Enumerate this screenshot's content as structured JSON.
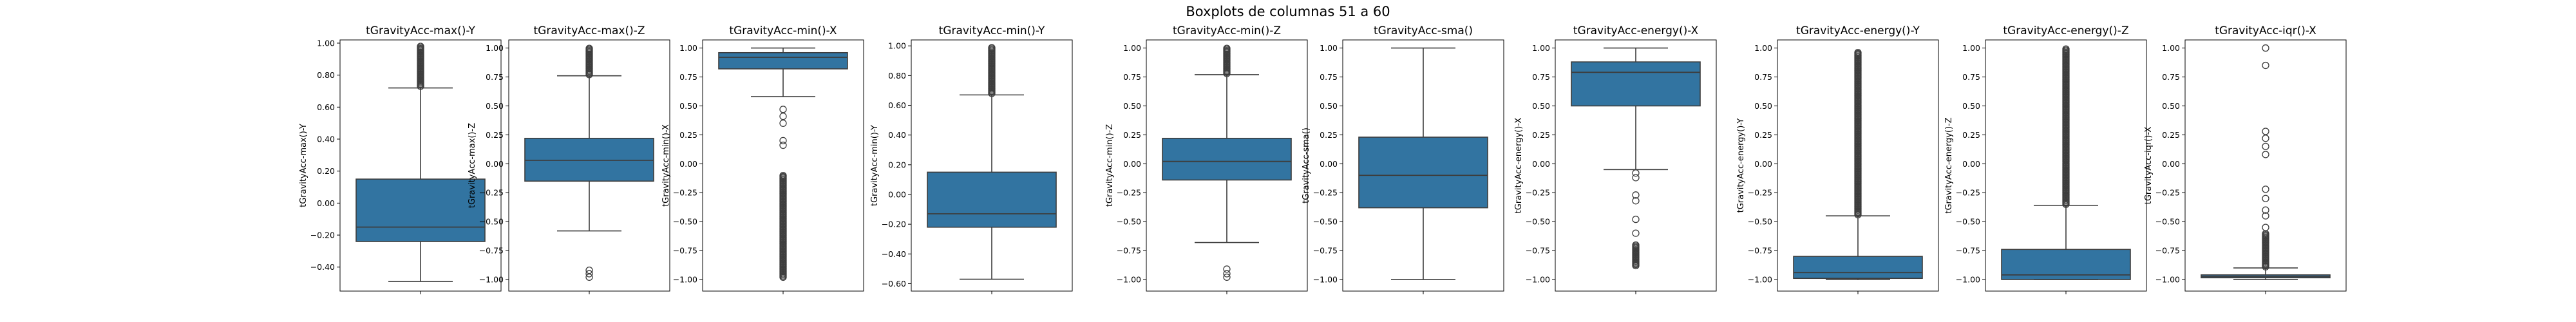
{
  "figure": {
    "suptitle": "Boxplots de columnas 51 a 60",
    "box_color": "#3274a1",
    "line_color": "#3d3d3d"
  },
  "chart_data": [
    {
      "type": "box",
      "title": "tGravityAcc-max()-Y",
      "ylabel": "tGravityAcc-max()-Y",
      "ylim": [
        -0.55,
        1.02
      ],
      "yticks": [
        -0.4,
        -0.2,
        0.0,
        0.2,
        0.4,
        0.6,
        0.8,
        1.0
      ],
      "q1": -0.24,
      "median": -0.15,
      "q3": 0.15,
      "whisker_low": -0.49,
      "whisker_high": 0.72,
      "outliers_range": [
        [
          0.73,
          0.98
        ]
      ],
      "outliers": []
    },
    {
      "type": "box",
      "title": "tGravityAcc-max()-Z",
      "ylabel": "tGravityAcc-max()-Z",
      "ylim": [
        -1.1,
        1.07
      ],
      "yticks": [
        -1.0,
        -0.75,
        -0.5,
        -0.25,
        0.0,
        0.25,
        0.5,
        0.75,
        1.0
      ],
      "q1": -0.15,
      "median": 0.03,
      "q3": 0.22,
      "whisker_low": -0.58,
      "whisker_high": 0.76,
      "outliers_range": [
        [
          0.77,
          1.0
        ]
      ],
      "outliers": [
        -0.92,
        -0.95,
        -0.98
      ]
    },
    {
      "type": "box",
      "title": "tGravityAcc-min()-X",
      "ylabel": "tGravityAcc-min()-X",
      "ylim": [
        -1.1,
        1.07
      ],
      "yticks": [
        -1.0,
        -0.75,
        -0.5,
        -0.25,
        0.0,
        0.25,
        0.5,
        0.75,
        1.0
      ],
      "q1": 0.82,
      "median": 0.92,
      "q3": 0.96,
      "whisker_low": 0.58,
      "whisker_high": 1.0,
      "outliers_range": [
        [
          -0.98,
          -0.1
        ]
      ],
      "outliers": [
        0.47,
        0.41,
        0.35,
        0.2,
        0.16
      ]
    },
    {
      "type": "box",
      "title": "tGravityAcc-min()-Y",
      "ylabel": "tGravityAcc-min()-Y",
      "ylim": [
        -0.65,
        1.04
      ],
      "yticks": [
        -0.6,
        -0.4,
        -0.2,
        0.0,
        0.2,
        0.4,
        0.6,
        0.8,
        1.0
      ],
      "q1": -0.22,
      "median": -0.13,
      "q3": 0.15,
      "whisker_low": -0.57,
      "whisker_high": 0.67,
      "outliers_range": [
        [
          0.68,
          0.99
        ]
      ],
      "outliers": []
    },
    {
      "type": "box",
      "title": "tGravityAcc-min()-Z",
      "ylabel": "tGravityAcc-min()-Z",
      "ylim": [
        -1.1,
        1.07
      ],
      "yticks": [
        -1.0,
        -0.75,
        -0.5,
        -0.25,
        0.0,
        0.25,
        0.5,
        0.75,
        1.0
      ],
      "q1": -0.14,
      "median": 0.02,
      "q3": 0.22,
      "whisker_low": -0.68,
      "whisker_high": 0.77,
      "outliers_range": [
        [
          0.78,
          1.0
        ]
      ],
      "outliers": [
        -0.91,
        -0.95,
        -0.98
      ]
    },
    {
      "type": "box",
      "title": "tGravityAcc-sma()",
      "ylabel": "tGravityAcc-sma()",
      "ylim": [
        -1.1,
        1.07
      ],
      "yticks": [
        -1.0,
        -0.75,
        -0.5,
        -0.25,
        0.0,
        0.25,
        0.5,
        0.75,
        1.0
      ],
      "q1": -0.38,
      "median": -0.1,
      "q3": 0.23,
      "whisker_low": -1.0,
      "whisker_high": 1.0,
      "outliers_range": [],
      "outliers": []
    },
    {
      "type": "box",
      "title": "tGravityAcc-energy()-X",
      "ylabel": "tGravityAcc-energy()-X",
      "ylim": [
        -1.1,
        1.07
      ],
      "yticks": [
        -1.0,
        -0.75,
        -0.5,
        -0.25,
        0.0,
        0.25,
        0.5,
        0.75,
        1.0
      ],
      "q1": 0.5,
      "median": 0.79,
      "q3": 0.88,
      "whisker_low": -0.05,
      "whisker_high": 1.0,
      "outliers_range": [
        [
          -0.88,
          -0.7
        ]
      ],
      "outliers": [
        -0.08,
        -0.12,
        -0.27,
        -0.32,
        -0.48,
        -0.6
      ]
    },
    {
      "type": "box",
      "title": "tGravityAcc-energy()-Y",
      "ylabel": "tGravityAcc-energy()-Y",
      "ylim": [
        -1.1,
        1.07
      ],
      "yticks": [
        -1.0,
        -0.75,
        -0.5,
        -0.25,
        0.0,
        0.25,
        0.5,
        0.75,
        1.0
      ],
      "q1": -0.99,
      "median": -0.94,
      "q3": -0.8,
      "whisker_low": -1.0,
      "whisker_high": -0.45,
      "outliers_range": [
        [
          -0.44,
          0.97
        ]
      ],
      "outliers": []
    },
    {
      "type": "box",
      "title": "tGravityAcc-energy()-Z",
      "ylabel": "tGravityAcc-energy()-Z",
      "ylim": [
        -1.1,
        1.07
      ],
      "yticks": [
        -1.0,
        -0.75,
        -0.5,
        -0.25,
        0.0,
        0.25,
        0.5,
        0.75,
        1.0
      ],
      "q1": -1.0,
      "median": -0.96,
      "q3": -0.74,
      "whisker_low": -1.0,
      "whisker_high": -0.36,
      "outliers_range": [
        [
          -0.35,
          1.0
        ]
      ],
      "outliers": []
    },
    {
      "type": "box",
      "title": "tGravityAcc-iqr()-X",
      "ylabel": "tGravityAcc-iqr()-X",
      "ylim": [
        -1.1,
        1.07
      ],
      "yticks": [
        -1.0,
        -0.75,
        -0.5,
        -0.25,
        0.0,
        0.25,
        0.5,
        0.75,
        1.0
      ],
      "q1": -0.985,
      "median": -0.975,
      "q3": -0.96,
      "whisker_low": -1.0,
      "whisker_high": -0.9,
      "outliers_range": [
        [
          -0.89,
          -0.6
        ]
      ],
      "outliers": [
        -0.55,
        -0.45,
        -0.4,
        -0.3,
        -0.22,
        0.08,
        0.15,
        0.22,
        0.28,
        0.85,
        1.0
      ]
    }
  ]
}
